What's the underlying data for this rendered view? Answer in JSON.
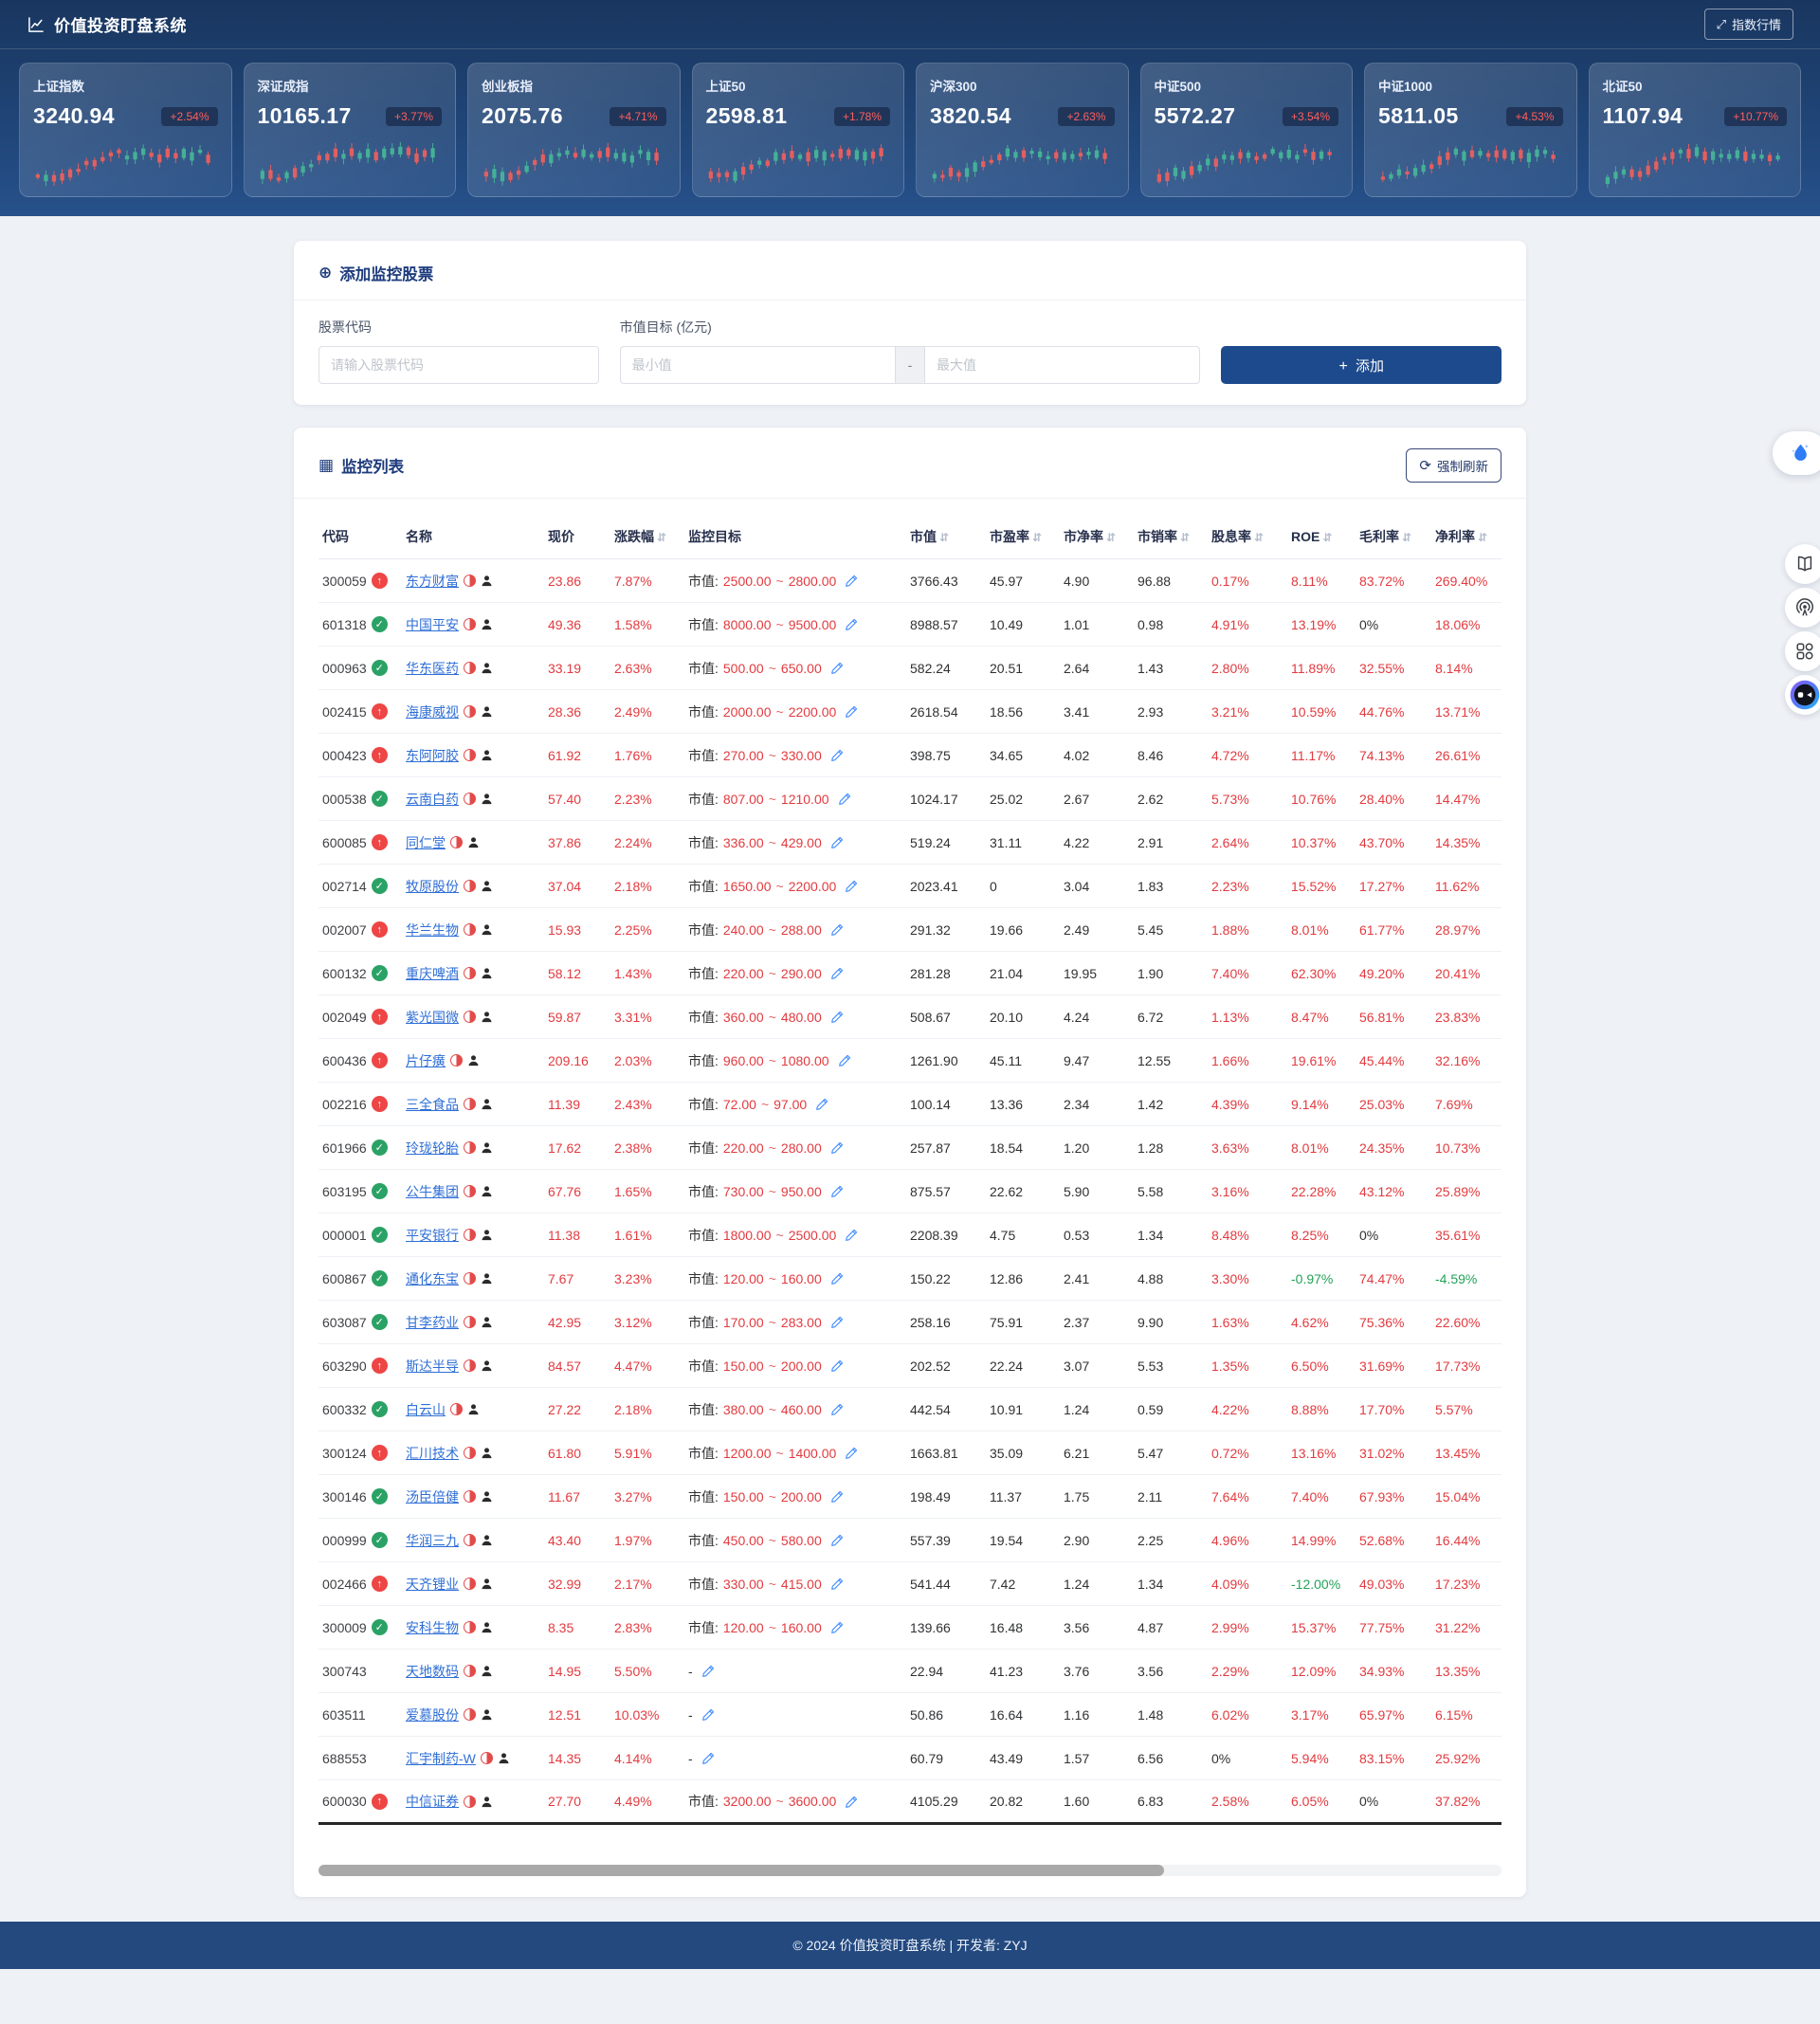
{
  "header": {
    "title": "价值投资盯盘系统",
    "index_quotes_button": "指数行情"
  },
  "icons": {
    "expand": "⤢",
    "plus_circle": "⊕",
    "table_grid": "▦",
    "refresh": "⟳",
    "sort": "⇵",
    "check": "✓",
    "arrow_up": "↑",
    "button_plus": "+"
  },
  "indices": [
    {
      "name": "上证指数",
      "value": "3240.94",
      "change": "+2.54%"
    },
    {
      "name": "深证成指",
      "value": "10165.17",
      "change": "+3.77%"
    },
    {
      "name": "创业板指",
      "value": "2075.76",
      "change": "+4.71%"
    },
    {
      "name": "上证50",
      "value": "2598.81",
      "change": "+1.78%"
    },
    {
      "name": "沪深300",
      "value": "3820.54",
      "change": "+2.63%"
    },
    {
      "name": "中证500",
      "value": "5572.27",
      "change": "+3.54%"
    },
    {
      "name": "中证1000",
      "value": "5811.05",
      "change": "+4.53%"
    },
    {
      "name": "北证50",
      "value": "1107.94",
      "change": "+10.77%"
    }
  ],
  "add_form": {
    "title": "添加监控股票",
    "code_label": "股票代码",
    "code_placeholder": "请输入股票代码",
    "target_label": "市值目标 (亿元)",
    "min_placeholder": "最小值",
    "separator": "-",
    "max_placeholder": "最大值",
    "add_button": "添加"
  },
  "watchlist": {
    "title": "监控列表",
    "refresh_button": "强制刷新",
    "target_prefix": "市值:",
    "target_tilde": "~",
    "no_target_placeholder": "-",
    "columns": [
      {
        "label": "代码",
        "sortable": false
      },
      {
        "label": "名称",
        "sortable": false
      },
      {
        "label": "现价",
        "sortable": false
      },
      {
        "label": "涨跌幅",
        "sortable": true
      },
      {
        "label": "监控目标",
        "sortable": false
      },
      {
        "label": "市值",
        "sortable": true
      },
      {
        "label": "市盈率",
        "sortable": true
      },
      {
        "label": "市净率",
        "sortable": true
      },
      {
        "label": "市销率",
        "sortable": true
      },
      {
        "label": "股息率",
        "sortable": true
      },
      {
        "label": "ROE",
        "sortable": true
      },
      {
        "label": "毛利率",
        "sortable": true
      },
      {
        "label": "净利率",
        "sortable": true
      }
    ],
    "row_fields": [
      "code",
      "status",
      "name",
      "price",
      "change",
      "target_min",
      "target_max",
      "market_cap",
      "pe",
      "pb",
      "ps",
      "dividend_yield",
      "roe",
      "gross_margin",
      "net_margin"
    ],
    "rows": [
      [
        "300059",
        "up",
        "东方财富",
        "23.86",
        "7.87%",
        "2500.00",
        "2800.00",
        "3766.43",
        "45.97",
        "4.90",
        "96.88",
        "0.17%",
        "8.11%",
        "83.72%",
        "269.40%"
      ],
      [
        "601318",
        "ok",
        "中国平安",
        "49.36",
        "1.58%",
        "8000.00",
        "9500.00",
        "8988.57",
        "10.49",
        "1.01",
        "0.98",
        "4.91%",
        "13.19%",
        "0%",
        "18.06%"
      ],
      [
        "000963",
        "ok",
        "华东医药",
        "33.19",
        "2.63%",
        "500.00",
        "650.00",
        "582.24",
        "20.51",
        "2.64",
        "1.43",
        "2.80%",
        "11.89%",
        "32.55%",
        "8.14%"
      ],
      [
        "002415",
        "up",
        "海康威视",
        "28.36",
        "2.49%",
        "2000.00",
        "2200.00",
        "2618.54",
        "18.56",
        "3.41",
        "2.93",
        "3.21%",
        "10.59%",
        "44.76%",
        "13.71%"
      ],
      [
        "000423",
        "up",
        "东阿阿胶",
        "61.92",
        "1.76%",
        "270.00",
        "330.00",
        "398.75",
        "34.65",
        "4.02",
        "8.46",
        "4.72%",
        "11.17%",
        "74.13%",
        "26.61%"
      ],
      [
        "000538",
        "ok",
        "云南白药",
        "57.40",
        "2.23%",
        "807.00",
        "1210.00",
        "1024.17",
        "25.02",
        "2.67",
        "2.62",
        "5.73%",
        "10.76%",
        "28.40%",
        "14.47%"
      ],
      [
        "600085",
        "up",
        "同仁堂",
        "37.86",
        "2.24%",
        "336.00",
        "429.00",
        "519.24",
        "31.11",
        "4.22",
        "2.91",
        "2.64%",
        "10.37%",
        "43.70%",
        "14.35%"
      ],
      [
        "002714",
        "ok",
        "牧原股份",
        "37.04",
        "2.18%",
        "1650.00",
        "2200.00",
        "2023.41",
        "0",
        "3.04",
        "1.83",
        "2.23%",
        "15.52%",
        "17.27%",
        "11.62%"
      ],
      [
        "002007",
        "up",
        "华兰生物",
        "15.93",
        "2.25%",
        "240.00",
        "288.00",
        "291.32",
        "19.66",
        "2.49",
        "5.45",
        "1.88%",
        "8.01%",
        "61.77%",
        "28.97%"
      ],
      [
        "600132",
        "ok",
        "重庆啤酒",
        "58.12",
        "1.43%",
        "220.00",
        "290.00",
        "281.28",
        "21.04",
        "19.95",
        "1.90",
        "7.40%",
        "62.30%",
        "49.20%",
        "20.41%"
      ],
      [
        "002049",
        "up",
        "紫光国微",
        "59.87",
        "3.31%",
        "360.00",
        "480.00",
        "508.67",
        "20.10",
        "4.24",
        "6.72",
        "1.13%",
        "8.47%",
        "56.81%",
        "23.83%"
      ],
      [
        "600436",
        "up",
        "片仔癀",
        "209.16",
        "2.03%",
        "960.00",
        "1080.00",
        "1261.90",
        "45.11",
        "9.47",
        "12.55",
        "1.66%",
        "19.61%",
        "45.44%",
        "32.16%"
      ],
      [
        "002216",
        "up",
        "三全食品",
        "11.39",
        "2.43%",
        "72.00",
        "97.00",
        "100.14",
        "13.36",
        "2.34",
        "1.42",
        "4.39%",
        "9.14%",
        "25.03%",
        "7.69%"
      ],
      [
        "601966",
        "ok",
        "玲珑轮胎",
        "17.62",
        "2.38%",
        "220.00",
        "280.00",
        "257.87",
        "18.54",
        "1.20",
        "1.28",
        "3.63%",
        "8.01%",
        "24.35%",
        "10.73%"
      ],
      [
        "603195",
        "ok",
        "公牛集团",
        "67.76",
        "1.65%",
        "730.00",
        "950.00",
        "875.57",
        "22.62",
        "5.90",
        "5.58",
        "3.16%",
        "22.28%",
        "43.12%",
        "25.89%"
      ],
      [
        "000001",
        "ok",
        "平安银行",
        "11.38",
        "1.61%",
        "1800.00",
        "2500.00",
        "2208.39",
        "4.75",
        "0.53",
        "1.34",
        "8.48%",
        "8.25%",
        "0%",
        "35.61%"
      ],
      [
        "600867",
        "ok",
        "通化东宝",
        "7.67",
        "3.23%",
        "120.00",
        "160.00",
        "150.22",
        "12.86",
        "2.41",
        "4.88",
        "3.30%",
        "-0.97%",
        "74.47%",
        "-4.59%"
      ],
      [
        "603087",
        "ok",
        "甘李药业",
        "42.95",
        "3.12%",
        "170.00",
        "283.00",
        "258.16",
        "75.91",
        "2.37",
        "9.90",
        "1.63%",
        "4.62%",
        "75.36%",
        "22.60%"
      ],
      [
        "603290",
        "up",
        "斯达半导",
        "84.57",
        "4.47%",
        "150.00",
        "200.00",
        "202.52",
        "22.24",
        "3.07",
        "5.53",
        "1.35%",
        "6.50%",
        "31.69%",
        "17.73%"
      ],
      [
        "600332",
        "ok",
        "白云山",
        "27.22",
        "2.18%",
        "380.00",
        "460.00",
        "442.54",
        "10.91",
        "1.24",
        "0.59",
        "4.22%",
        "8.88%",
        "17.70%",
        "5.57%"
      ],
      [
        "300124",
        "up",
        "汇川技术",
        "61.80",
        "5.91%",
        "1200.00",
        "1400.00",
        "1663.81",
        "35.09",
        "6.21",
        "5.47",
        "0.72%",
        "13.16%",
        "31.02%",
        "13.45%"
      ],
      [
        "300146",
        "ok",
        "汤臣倍健",
        "11.67",
        "3.27%",
        "150.00",
        "200.00",
        "198.49",
        "11.37",
        "1.75",
        "2.11",
        "7.64%",
        "7.40%",
        "67.93%",
        "15.04%"
      ],
      [
        "000999",
        "ok",
        "华润三九",
        "43.40",
        "1.97%",
        "450.00",
        "580.00",
        "557.39",
        "19.54",
        "2.90",
        "2.25",
        "4.96%",
        "14.99%",
        "52.68%",
        "16.44%"
      ],
      [
        "002466",
        "up",
        "天齐锂业",
        "32.99",
        "2.17%",
        "330.00",
        "415.00",
        "541.44",
        "7.42",
        "1.24",
        "1.34",
        "4.09%",
        "-12.00%",
        "49.03%",
        "17.23%"
      ],
      [
        "300009",
        "ok",
        "安科生物",
        "8.35",
        "2.83%",
        "120.00",
        "160.00",
        "139.66",
        "16.48",
        "3.56",
        "4.87",
        "2.99%",
        "15.37%",
        "77.75%",
        "31.22%"
      ],
      [
        "300743",
        "none",
        "天地数码",
        "14.95",
        "5.50%",
        null,
        null,
        "22.94",
        "41.23",
        "3.76",
        "3.56",
        "2.29%",
        "12.09%",
        "34.93%",
        "13.35%"
      ],
      [
        "603511",
        "none",
        "爱慕股份",
        "12.51",
        "10.03%",
        null,
        null,
        "50.86",
        "16.64",
        "1.16",
        "1.48",
        "6.02%",
        "3.17%",
        "65.97%",
        "6.15%"
      ],
      [
        "688553",
        "none",
        "汇宇制药-W",
        "14.35",
        "4.14%",
        null,
        null,
        "60.79",
        "43.49",
        "1.57",
        "6.56",
        "0%",
        "5.94%",
        "83.15%",
        "25.92%"
      ],
      [
        "600030",
        "up",
        "中信证券",
        "27.70",
        "4.49%",
        "3200.00",
        "3600.00",
        "4105.29",
        "20.82",
        "1.60",
        "6.83",
        "2.58%",
        "6.05%",
        "0%",
        "37.82%"
      ]
    ]
  },
  "footer": {
    "text": "© 2024 价值投资盯盘系统 | 开发者: ZYJ"
  },
  "colors": {
    "positive_red": "#e23a3f",
    "negative_green": "#23a257",
    "neutral_dark": "#303133",
    "link_blue": "#2f6fd6",
    "accent_navy": "#1d4a8c",
    "badge_red": "#ff5f5f",
    "candle_up": "#e35f5f",
    "candle_down": "#45b097"
  }
}
